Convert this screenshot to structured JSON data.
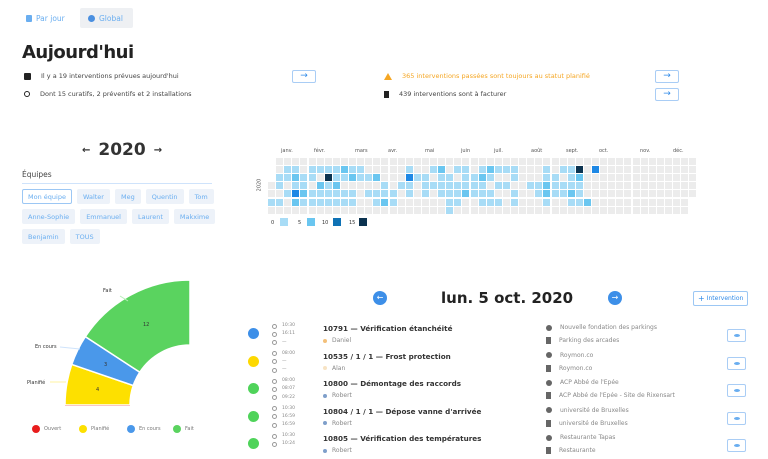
{
  "tabs": [
    {
      "label": "Par jour",
      "icon": "calendar-icon"
    },
    {
      "label": "Global",
      "icon": "pie-chart-icon",
      "active": true
    }
  ],
  "header": {
    "title": "Aujourd'hui"
  },
  "summary": [
    {
      "icon": "calendar-icon",
      "text": "Il y a 19 interventions prévues aujourd'hui",
      "arrow": "→"
    },
    {
      "icon": "search-icon",
      "text": "Dont 15 curatifs, 2 préventifs et 2 installations"
    },
    {
      "icon": "warning-icon",
      "text": "365 interventions passées sont toujours au statut planifié",
      "arrow": "→",
      "color": "#f5a623"
    },
    {
      "icon": "invoice-icon",
      "text": "439 interventions sont à facturer",
      "arrow": "→"
    }
  ],
  "year": {
    "prev": "←",
    "value": "2020",
    "next": "→"
  },
  "teams": {
    "title": "Équipes",
    "items": [
      "Mon équipe",
      "Walter",
      "Meg",
      "Quentin",
      "Tom",
      "Anne-Sophie",
      "Emmanuel",
      "Laurent",
      "Makxime",
      "Benjamin",
      "TOUS"
    ],
    "selected": 0
  },
  "heatmap": {
    "year_label": "2020",
    "months": [
      "janv.",
      "févr.",
      "mars",
      "avr.",
      "mai",
      "juin",
      "juil.",
      "août",
      "sept.",
      "oct.",
      "nov.",
      "déc."
    ],
    "levels": [
      "00000000000000000000000000000000000000000000000000000",
      "00110111121100000100120110121110001011403000000000000",
      "01121104112112000311011011210010001101200000000000000",
      "01011021200000101101111111101100112111100000000000000",
      "00132111111011110101011121110010012112100000000000000",
      "11021111111001210000001100111010001001120000000000000",
      "00000000000000000000001000000000000000000000000000000"
    ],
    "level_colors": [
      "#ececec",
      "#a8dcf6",
      "#6ac6f0",
      "#1e88e5",
      "#0b3350"
    ],
    "legend": [
      {
        "label": "0",
        "color": "#a8dcf6"
      },
      {
        "label": "5",
        "color": "#6ac6f0"
      },
      {
        "label": "10",
        "color": "#0f72b5"
      },
      {
        "label": "15",
        "color": "#0b3350"
      }
    ]
  },
  "status_chart": {
    "type": "pie",
    "series": [
      {
        "name": "Ouvert",
        "value": 0,
        "color": "#e81c1c"
      },
      {
        "name": "Planifié",
        "value": 4,
        "color": "#fde000"
      },
      {
        "name": "En cours",
        "value": 3,
        "color": "#4a98ea"
      },
      {
        "name": "Fait",
        "value": 12,
        "color": "#5ad35f"
      }
    ]
  },
  "day": {
    "prev": "←",
    "title": "lun. 5 oct. 2020",
    "next": "→",
    "add_label": "Intervention"
  },
  "interventions": [
    {
      "status_color": "#3d8fe8",
      "times": [
        "10:30",
        "16:11",
        "—"
      ],
      "title": "10791 — Vérification étanchéité",
      "tech": "Daniel",
      "tech_color": "#f3c07a",
      "client": "Nouvelle fondation des parkings",
      "site": "Parking des arcades"
    },
    {
      "status_color": "#fdd800",
      "times": [
        "08:00",
        "—",
        "—"
      ],
      "title": "10535 / 1 / 1 — Frost protection",
      "tech": "Alan",
      "tech_color": "#f7e3c4",
      "client": "Roymon.co",
      "site": "Roymon.co"
    },
    {
      "status_color": "#4fd35a",
      "times": [
        "08:00",
        "08:07",
        "09:22"
      ],
      "title": "10800 — Démontage des raccords",
      "tech": "Robert",
      "tech_color": "#7f9fca",
      "client": "ACP Abbé de l'Epée",
      "site": "ACP Abbé de l'Epée - Site de Rixensart"
    },
    {
      "status_color": "#4fd35a",
      "times": [
        "10:30",
        "16:59",
        "16:59"
      ],
      "title": "10804 / 1 / 1 — Dépose vanne d'arrivée",
      "tech": "Robert",
      "tech_color": "#7f9fca",
      "client": "université de Bruxelles",
      "site": "université de Bruxelles"
    },
    {
      "status_color": "#4fd35a",
      "times": [
        "10:30",
        "10:24"
      ],
      "title": "10805 — Vérification des températures",
      "tech": "Robert",
      "tech_color": "#7f9fca",
      "client": "Restaurante Tapas",
      "site": "Restaurante"
    }
  ]
}
